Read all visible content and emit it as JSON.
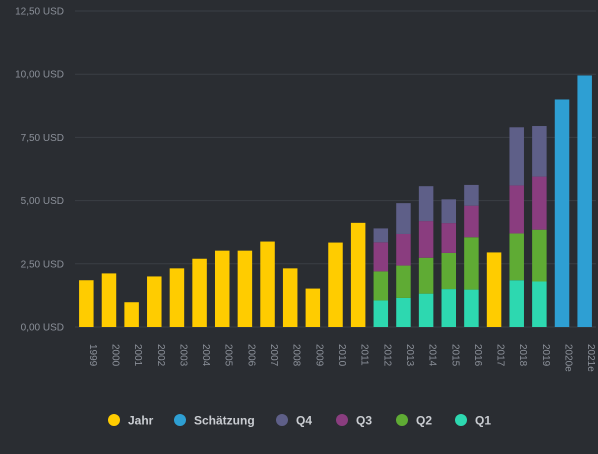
{
  "colors": {
    "background": "#2a2d32",
    "grid": "#3a3e45",
    "tick": "#8b9099",
    "Jahr": "#ffcc00",
    "Schätzung": "#2e9fd3",
    "Q4": "#5e5f88",
    "Q3": "#8a3d7f",
    "Q2": "#5fab34",
    "Q1": "#2dd8b0"
  },
  "chart_data": {
    "type": "bar",
    "stacked": true,
    "categories": [
      "1999",
      "2000",
      "2001",
      "2002",
      "2003",
      "2004",
      "2005",
      "2006",
      "2007",
      "2008",
      "2009",
      "2010",
      "2011",
      "2012",
      "2013",
      "2014",
      "2015",
      "2016",
      "2017",
      "2018",
      "2019",
      "2020e",
      "2021e"
    ],
    "yticks": [
      "0,00 USD",
      "2,50 USD",
      "5,00 USD",
      "7,50 USD",
      "10,00 USD",
      "12,50 USD"
    ],
    "ylim": [
      0,
      12.5
    ],
    "grid": true,
    "legend_position": "bottom",
    "series": [
      {
        "name": "Jahr",
        "values": [
          1.85,
          2.12,
          0.98,
          2.0,
          2.32,
          2.7,
          3.02,
          3.02,
          3.38,
          2.32,
          1.52,
          3.34,
          4.12,
          null,
          null,
          null,
          null,
          null,
          2.95,
          null,
          null,
          null,
          null
        ]
      },
      {
        "name": "Schätzung",
        "values": [
          null,
          null,
          null,
          null,
          null,
          null,
          null,
          null,
          null,
          null,
          null,
          null,
          null,
          null,
          null,
          null,
          null,
          null,
          null,
          null,
          null,
          9.0,
          9.95
        ]
      },
      {
        "name": "Q1",
        "values": [
          null,
          null,
          null,
          null,
          null,
          null,
          null,
          null,
          null,
          null,
          null,
          null,
          null,
          1.05,
          1.15,
          1.32,
          1.5,
          1.48,
          null,
          1.85,
          1.8,
          null,
          null
        ]
      },
      {
        "name": "Q2",
        "values": [
          null,
          null,
          null,
          null,
          null,
          null,
          null,
          null,
          null,
          null,
          null,
          null,
          null,
          1.15,
          1.28,
          1.42,
          1.43,
          2.07,
          null,
          1.85,
          2.05,
          null,
          null
        ]
      },
      {
        "name": "Q3",
        "values": [
          null,
          null,
          null,
          null,
          null,
          null,
          null,
          null,
          null,
          null,
          null,
          null,
          null,
          1.15,
          1.25,
          1.45,
          1.18,
          1.25,
          null,
          1.9,
          2.1,
          null,
          null
        ]
      },
      {
        "name": "Q4",
        "values": [
          null,
          null,
          null,
          null,
          null,
          null,
          null,
          null,
          null,
          null,
          null,
          null,
          null,
          0.55,
          1.22,
          1.38,
          0.94,
          0.82,
          null,
          2.3,
          2.0,
          null,
          null
        ]
      }
    ],
    "legend": [
      "Jahr",
      "Schätzung",
      "Q4",
      "Q3",
      "Q2",
      "Q1"
    ]
  }
}
